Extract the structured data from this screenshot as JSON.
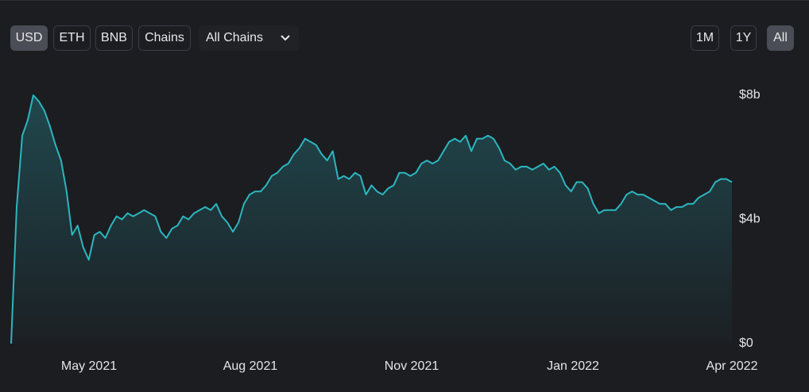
{
  "toolbar": {
    "currency_buttons": [
      "USD",
      "ETH",
      "BNB",
      "Chains"
    ],
    "chain_select": "All Chains",
    "range_buttons": [
      "1M",
      "1Y",
      "All"
    ]
  },
  "chart_data": {
    "type": "area",
    "x_labels": [
      "May 2021",
      "Aug 2021",
      "Nov 2021",
      "Jan 2022",
      "Apr 2022"
    ],
    "series": [
      {
        "color": "#2cb6bf",
        "values": [
          0,
          4.4,
          6.7,
          7.2,
          8.0,
          7.8,
          7.5,
          7.0,
          6.4,
          5.9,
          4.9,
          3.5,
          3.8,
          3.1,
          2.7,
          3.5,
          3.6,
          3.4,
          3.8,
          4.1,
          4.0,
          4.2,
          4.1,
          4.2,
          4.3,
          4.2,
          4.1,
          3.6,
          3.4,
          3.7,
          3.8,
          4.1,
          4.0,
          4.2,
          4.3,
          4.4,
          4.3,
          4.5,
          4.1,
          3.9,
          3.6,
          3.9,
          4.5,
          4.8,
          4.9,
          4.9,
          5.1,
          5.4,
          5.5,
          5.7,
          5.8,
          6.1,
          6.3,
          6.6,
          6.5,
          6.4,
          6.1,
          5.9,
          6.2,
          5.3,
          5.4,
          5.3,
          5.5,
          5.4,
          4.8,
          5.1,
          4.9,
          4.8,
          5.0,
          5.1,
          5.5,
          5.5,
          5.4,
          5.5,
          5.8,
          5.9,
          5.8,
          5.9,
          6.2,
          6.5,
          6.6,
          6.5,
          6.7,
          6.2,
          6.6,
          6.6,
          6.7,
          6.6,
          6.3,
          5.9,
          5.8,
          5.6,
          5.7,
          5.7,
          5.6,
          5.7,
          5.8,
          5.6,
          5.7,
          5.5,
          5.1,
          4.9,
          5.2,
          5.2,
          5.0,
          4.5,
          4.2,
          4.3,
          4.3,
          4.3,
          4.5,
          4.8,
          4.9,
          4.8,
          4.8,
          4.7,
          4.6,
          4.5,
          4.5,
          4.3,
          4.4,
          4.4,
          4.5,
          4.5,
          4.7,
          4.8,
          4.9,
          5.2,
          5.3,
          5.3,
          5.2
        ]
      }
    ],
    "ylim": [
      0,
      8
    ],
    "yticks": [
      {
        "value": 0,
        "label": "$0"
      },
      {
        "value": 4,
        "label": "$4b"
      },
      {
        "value": 8,
        "label": "$8b"
      }
    ]
  }
}
